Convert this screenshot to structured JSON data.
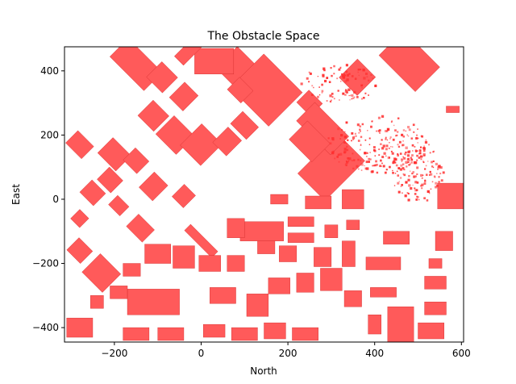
{
  "chart_data": {
    "type": "scatter",
    "title": "The Obstacle Space",
    "xlabel": "North",
    "ylabel": "East",
    "xlim": [
      -315,
      605
    ],
    "ylim": [
      -445,
      475
    ],
    "xticks": [
      -200,
      0,
      200,
      400,
      600
    ],
    "xtick_labels": [
      "−200",
      "0",
      "200",
      "400",
      "600"
    ],
    "yticks": [
      -400,
      -200,
      0,
      200,
      400
    ],
    "ytick_labels": [
      "−400",
      "−200",
      "0",
      "200",
      "400"
    ],
    "grid": false,
    "colors": {
      "obstacle_fill": "#ff5a5a",
      "obstacle_edge": "#d02828",
      "scatter": "#ff3030"
    },
    "obstacle_blocks": [
      {
        "x": 300,
        "y": 100,
        "w": 130,
        "h": 120,
        "rot": 45
      },
      {
        "x": 90,
        "y": 400,
        "w": 70,
        "h": 120,
        "rot": 45
      },
      {
        "x": 150,
        "y": 340,
        "w": 110,
        "h": 170,
        "rot": 45
      },
      {
        "x": 250,
        "y": 300,
        "w": 40,
        "h": 60,
        "rot": 45
      },
      {
        "x": 360,
        "y": 380,
        "w": 60,
        "h": 80,
        "rot": 45
      },
      {
        "x": 480,
        "y": 430,
        "w": 80,
        "h": 160,
        "rot": 45
      },
      {
        "x": 280,
        "y": 220,
        "w": 60,
        "h": 150,
        "rot": 45
      },
      {
        "x": 30,
        "y": 430,
        "w": 90,
        "h": 80,
        "rot": 0
      },
      {
        "x": 90,
        "y": 340,
        "w": 40,
        "h": 60,
        "rot": 45
      },
      {
        "x": -150,
        "y": 420,
        "w": 60,
        "h": 150,
        "rot": 45
      },
      {
        "x": -90,
        "y": 380,
        "w": 50,
        "h": 70,
        "rot": 45
      },
      {
        "x": -40,
        "y": 320,
        "w": 50,
        "h": 60,
        "rot": 45
      },
      {
        "x": -30,
        "y": 460,
        "w": 60,
        "h": 40,
        "rot": 45
      },
      {
        "x": -110,
        "y": 260,
        "w": 50,
        "h": 70,
        "rot": 45
      },
      {
        "x": -60,
        "y": 200,
        "w": 60,
        "h": 90,
        "rot": 45
      },
      {
        "x": 0,
        "y": 170,
        "w": 70,
        "h": 90,
        "rot": 45
      },
      {
        "x": 60,
        "y": 180,
        "w": 50,
        "h": 60,
        "rot": 45
      },
      {
        "x": 100,
        "y": 230,
        "w": 40,
        "h": 70,
        "rot": 45
      },
      {
        "x": 250,
        "y": 180,
        "w": 60,
        "h": 100,
        "rot": 45
      },
      {
        "x": -280,
        "y": 170,
        "w": 40,
        "h": 70,
        "rot": 45
      },
      {
        "x": -200,
        "y": 140,
        "w": 50,
        "h": 80,
        "rot": 45
      },
      {
        "x": -150,
        "y": 120,
        "w": 40,
        "h": 60,
        "rot": 45
      },
      {
        "x": -210,
        "y": 60,
        "w": 40,
        "h": 60,
        "rot": 45
      },
      {
        "x": -110,
        "y": 40,
        "w": 50,
        "h": 60,
        "rot": 45
      },
      {
        "x": -40,
        "y": 10,
        "w": 40,
        "h": 50,
        "rot": 45
      },
      {
        "x": -250,
        "y": 20,
        "w": 40,
        "h": 60,
        "rot": 45
      },
      {
        "x": -190,
        "y": -20,
        "w": 30,
        "h": 50,
        "rot": 45
      },
      {
        "x": -280,
        "y": -60,
        "w": 30,
        "h": 40,
        "rot": 45
      },
      {
        "x": -140,
        "y": -90,
        "w": 40,
        "h": 70,
        "rot": 45
      },
      {
        "x": -280,
        "y": -160,
        "w": 40,
        "h": 60,
        "rot": 45
      },
      {
        "x": -230,
        "y": -230,
        "w": 60,
        "h": 90,
        "rot": 45
      },
      {
        "x": 0,
        "y": -130,
        "w": 20,
        "h": 120,
        "rot": 45
      },
      {
        "x": 140,
        "y": -100,
        "w": 100,
        "h": 60,
        "rot": 0
      },
      {
        "x": 80,
        "y": -90,
        "w": 40,
        "h": 60,
        "rot": 0
      },
      {
        "x": 180,
        "y": 0,
        "w": 40,
        "h": 30,
        "rot": 0
      },
      {
        "x": 270,
        "y": -10,
        "w": 60,
        "h": 40,
        "rot": 0
      },
      {
        "x": 350,
        "y": 0,
        "w": 50,
        "h": 60,
        "rot": 0
      },
      {
        "x": 230,
        "y": -70,
        "w": 60,
        "h": 30,
        "rot": 0
      },
      {
        "x": 230,
        "y": -120,
        "w": 60,
        "h": 30,
        "rot": 0
      },
      {
        "x": 300,
        "y": -100,
        "w": 30,
        "h": 40,
        "rot": 0
      },
      {
        "x": 350,
        "y": -80,
        "w": 30,
        "h": 30,
        "rot": 0
      },
      {
        "x": 150,
        "y": -150,
        "w": 40,
        "h": 40,
        "rot": 0
      },
      {
        "x": 200,
        "y": -170,
        "w": 40,
        "h": 50,
        "rot": 0
      },
      {
        "x": 280,
        "y": -180,
        "w": 40,
        "h": 60,
        "rot": 0
      },
      {
        "x": 340,
        "y": -170,
        "w": 30,
        "h": 80,
        "rot": 0
      },
      {
        "x": -100,
        "y": -170,
        "w": 60,
        "h": 60,
        "rot": 0
      },
      {
        "x": -40,
        "y": -180,
        "w": 50,
        "h": 70,
        "rot": 0
      },
      {
        "x": 20,
        "y": -200,
        "w": 50,
        "h": 50,
        "rot": 0
      },
      {
        "x": 80,
        "y": -200,
        "w": 40,
        "h": 50,
        "rot": 0
      },
      {
        "x": -160,
        "y": -220,
        "w": 40,
        "h": 40,
        "rot": 0
      },
      {
        "x": -110,
        "y": -320,
        "w": 120,
        "h": 80,
        "rot": 0
      },
      {
        "x": -190,
        "y": -290,
        "w": 40,
        "h": 40,
        "rot": 0
      },
      {
        "x": -240,
        "y": -320,
        "w": 30,
        "h": 40,
        "rot": 0
      },
      {
        "x": -280,
        "y": -400,
        "w": 60,
        "h": 60,
        "rot": 0
      },
      {
        "x": -150,
        "y": -420,
        "w": 60,
        "h": 40,
        "rot": 0
      },
      {
        "x": -70,
        "y": -420,
        "w": 60,
        "h": 40,
        "rot": 0
      },
      {
        "x": 30,
        "y": -410,
        "w": 50,
        "h": 40,
        "rot": 0
      },
      {
        "x": 100,
        "y": -420,
        "w": 60,
        "h": 40,
        "rot": 0
      },
      {
        "x": 170,
        "y": -410,
        "w": 50,
        "h": 50,
        "rot": 0
      },
      {
        "x": 240,
        "y": -420,
        "w": 60,
        "h": 40,
        "rot": 0
      },
      {
        "x": 50,
        "y": -300,
        "w": 60,
        "h": 50,
        "rot": 0
      },
      {
        "x": 130,
        "y": -330,
        "w": 50,
        "h": 70,
        "rot": 0
      },
      {
        "x": 180,
        "y": -270,
        "w": 50,
        "h": 50,
        "rot": 0
      },
      {
        "x": 240,
        "y": -260,
        "w": 40,
        "h": 60,
        "rot": 0
      },
      {
        "x": 300,
        "y": -250,
        "w": 50,
        "h": 70,
        "rot": 0
      },
      {
        "x": 350,
        "y": -310,
        "w": 40,
        "h": 50,
        "rot": 0
      },
      {
        "x": 420,
        "y": -200,
        "w": 80,
        "h": 40,
        "rot": 0
      },
      {
        "x": 450,
        "y": -120,
        "w": 60,
        "h": 40,
        "rot": 0
      },
      {
        "x": 420,
        "y": -290,
        "w": 60,
        "h": 30,
        "rot": 0
      },
      {
        "x": 460,
        "y": -390,
        "w": 60,
        "h": 110,
        "rot": 0
      },
      {
        "x": 400,
        "y": -390,
        "w": 30,
        "h": 60,
        "rot": 0
      },
      {
        "x": 540,
        "y": -260,
        "w": 50,
        "h": 40,
        "rot": 0
      },
      {
        "x": 540,
        "y": -340,
        "w": 50,
        "h": 40,
        "rot": 0
      },
      {
        "x": 530,
        "y": -410,
        "w": 60,
        "h": 50,
        "rot": 0
      },
      {
        "x": 560,
        "y": -130,
        "w": 40,
        "h": 60,
        "rot": 0
      },
      {
        "x": 580,
        "y": 10,
        "w": 70,
        "h": 80,
        "rot": 0
      },
      {
        "x": 580,
        "y": 280,
        "w": 30,
        "h": 20,
        "rot": 0
      },
      {
        "x": 540,
        "y": -200,
        "w": 30,
        "h": 30,
        "rot": 0
      }
    ],
    "scatter_clusters": [
      {
        "x": 410,
        "y": 170,
        "rx": 120,
        "ry": 90,
        "n": 220
      },
      {
        "x": 500,
        "y": 80,
        "rx": 60,
        "ry": 90,
        "n": 120
      },
      {
        "x": 320,
        "y": 360,
        "rx": 90,
        "ry": 60,
        "n": 90
      }
    ]
  }
}
